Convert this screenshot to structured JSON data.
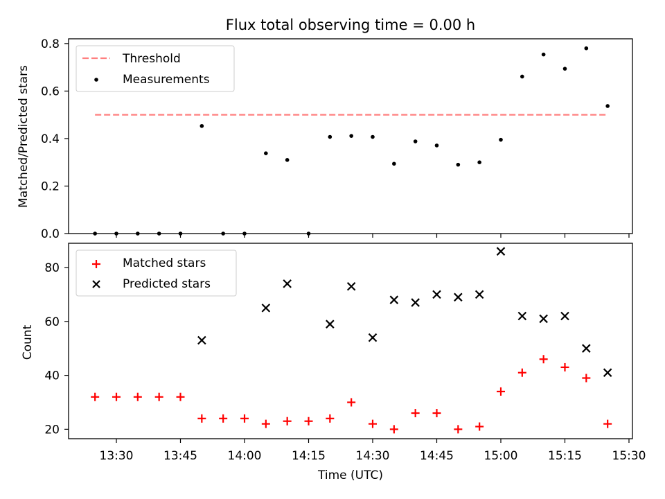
{
  "title": "Flux total observing time = 0.00 h",
  "colors": {
    "threshold": "#ff7f7f",
    "measurement": "#000000",
    "matched": "#ff0000",
    "predicted": "#000000"
  },
  "chart_data": [
    {
      "type": "scatter",
      "xlabel": "",
      "ylabel": "Matched/Predicted stars",
      "ylim": [
        0,
        0.82
      ],
      "yticks": [
        "0.0",
        "0.2",
        "0.4",
        "0.6",
        "0.8"
      ],
      "legend": {
        "placement": "top-left",
        "entries": [
          "Threshold",
          "Measurements"
        ]
      },
      "grid": false,
      "series": [
        {
          "name": "Threshold",
          "style": "dashed-line",
          "x": [
            "13:25",
            "15:25"
          ],
          "values": [
            0.5,
            0.5
          ]
        },
        {
          "name": "Measurements",
          "style": "dot",
          "x": [
            "13:25",
            "13:30",
            "13:35",
            "13:40",
            "13:45",
            "13:50",
            "13:55",
            "14:00",
            "14:05",
            "14:10",
            "14:15",
            "14:20",
            "14:25",
            "14:30",
            "14:35",
            "14:40",
            "14:45",
            "14:50",
            "14:55",
            "15:00",
            "15:05",
            "15:10",
            "15:15",
            "15:20",
            "15:25"
          ],
          "values": [
            0.0,
            0.0,
            0.0,
            0.0,
            0.0,
            0.453,
            0.0,
            0.0,
            0.338,
            0.31,
            0.0,
            0.407,
            0.411,
            0.407,
            0.294,
            0.388,
            0.371,
            0.29,
            0.3,
            0.395,
            0.661,
            0.754,
            0.694,
            0.78,
            0.537
          ]
        }
      ]
    },
    {
      "type": "scatter",
      "xlabel": "Time (UTC)",
      "ylabel": "Count",
      "ylim": [
        16.5,
        89
      ],
      "yticks": [
        "20",
        "40",
        "60",
        "80"
      ],
      "xticks": [
        "13:30",
        "13:45",
        "14:00",
        "14:15",
        "14:30",
        "14:45",
        "15:00",
        "15:15",
        "15:30"
      ],
      "legend": {
        "placement": "top-left",
        "entries": [
          "Matched stars",
          "Predicted stars"
        ]
      },
      "grid": false,
      "series": [
        {
          "name": "Matched stars",
          "marker": "plus",
          "x": [
            "13:25",
            "13:30",
            "13:35",
            "13:40",
            "13:45",
            "13:50",
            "13:55",
            "14:00",
            "14:05",
            "14:10",
            "14:15",
            "14:20",
            "14:25",
            "14:30",
            "14:35",
            "14:40",
            "14:45",
            "14:50",
            "14:55",
            "15:00",
            "15:05",
            "15:10",
            "15:15",
            "15:20",
            "15:25"
          ],
          "values": [
            32,
            32,
            32,
            32,
            32,
            24,
            24,
            24,
            22,
            23,
            23,
            24,
            30,
            22,
            20,
            26,
            26,
            20,
            21,
            34,
            41,
            46,
            43,
            39,
            22
          ]
        },
        {
          "name": "Predicted stars",
          "marker": "x",
          "x": [
            "13:50",
            "14:05",
            "14:10",
            "14:20",
            "14:25",
            "14:30",
            "14:35",
            "14:40",
            "14:45",
            "14:50",
            "14:55",
            "15:00",
            "15:05",
            "15:10",
            "15:15",
            "15:20",
            "15:25"
          ],
          "values": [
            53,
            65,
            74,
            59,
            73,
            54,
            68,
            67,
            70,
            69,
            70,
            86,
            62,
            61,
            62,
            50,
            41
          ]
        }
      ]
    }
  ]
}
